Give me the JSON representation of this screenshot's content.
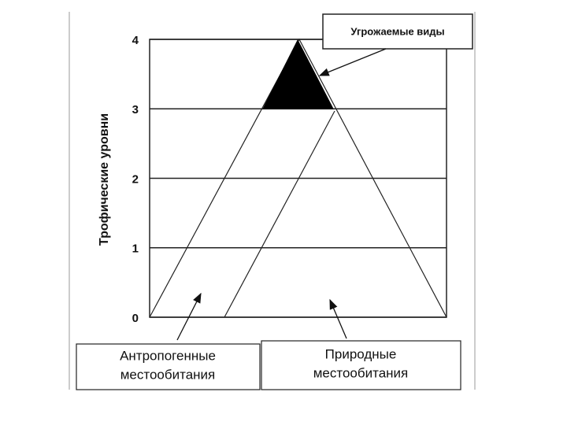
{
  "axis_label": "Трофические уровни",
  "levels": [
    0,
    1,
    2,
    3,
    4
  ],
  "callout": "Угрожаемые виды",
  "boxes": [
    {
      "lines": [
        "Антропогенные",
        "местообитания"
      ]
    },
    {
      "lines": [
        "Природные",
        "местообитания"
      ]
    }
  ]
}
